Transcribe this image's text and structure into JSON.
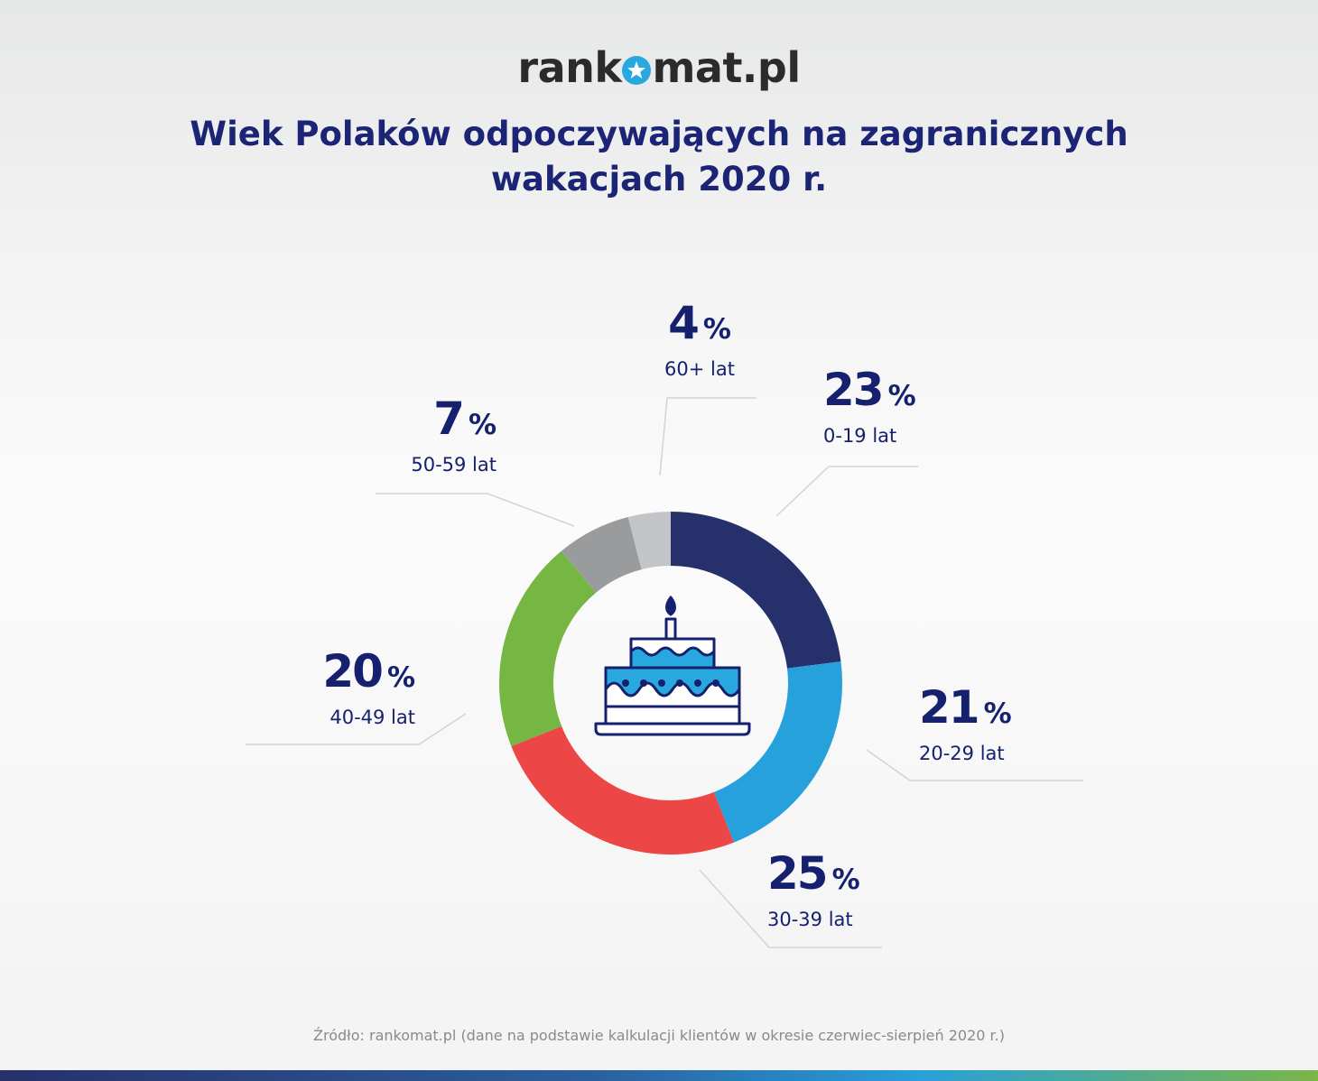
{
  "brand": {
    "logo_pre": "rank",
    "logo_post": "mat.pl",
    "star_color": "#29a8e0"
  },
  "title_line1": "Wiek Polaków odpoczywających na zagranicznych",
  "title_line2": "wakacjach 2020 r.",
  "source": "Źródło: rankomat.pl (dane na podstawie kalkulacji klientów w okresie czerwiec-sierpień 2020 r.)",
  "center_icon": "birthday-cake-icon",
  "chart_data": {
    "type": "pie",
    "donut": true,
    "unit": "%",
    "slices": [
      {
        "label": "0-19 lat",
        "value": 23,
        "color": "#26306b"
      },
      {
        "label": "20-29 lat",
        "value": 21,
        "color": "#27a1dc"
      },
      {
        "label": "30-39 lat",
        "value": 25,
        "color": "#ec4646"
      },
      {
        "label": "40-49 lat",
        "value": 20,
        "color": "#76b743"
      },
      {
        "label": "50-59 lat",
        "value": 7,
        "color": "#9a9b9d"
      },
      {
        "label": "60+ lat",
        "value": 4,
        "color": "#c3c5c8"
      }
    ]
  }
}
